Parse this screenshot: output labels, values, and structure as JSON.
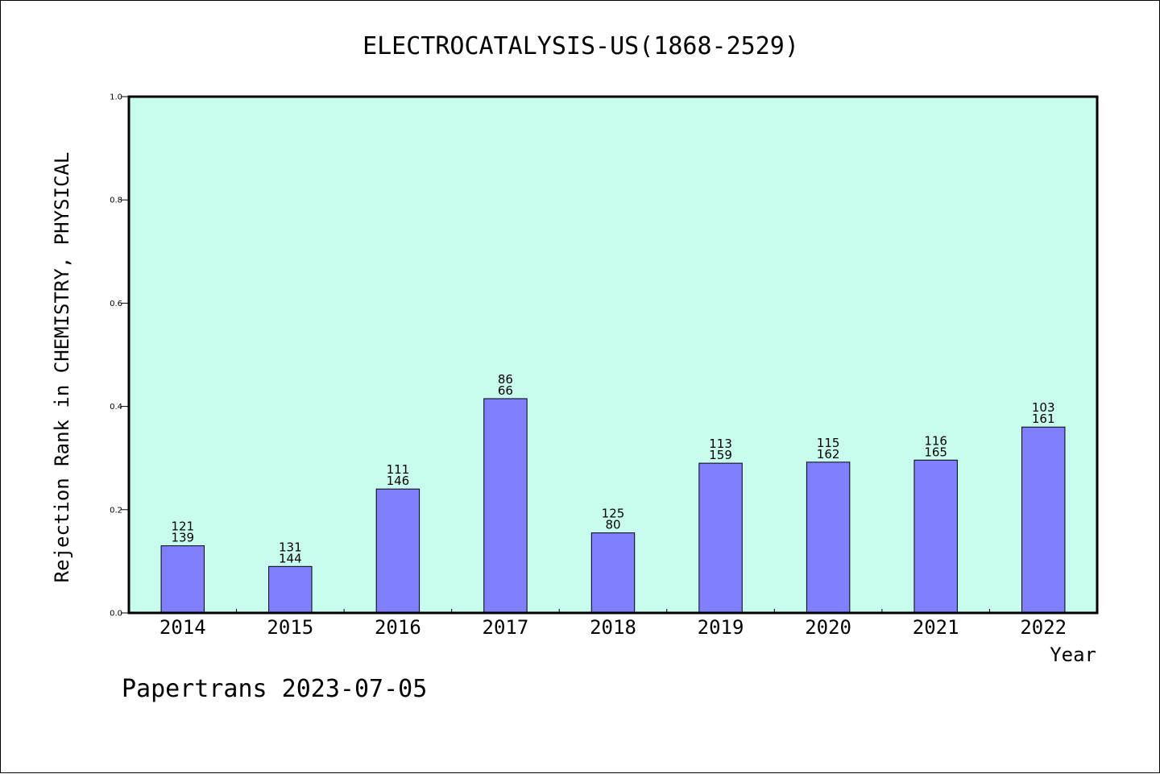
{
  "chart_data": {
    "type": "bar",
    "title": "ELECTROCATALYSIS-US(1868-2529)",
    "xlabel": "Year",
    "ylabel": "Rejection Rank in CHEMISTRY, PHYSICAL",
    "ylim": [
      0,
      1.0
    ],
    "yticks": [
      "0.0",
      "0.2",
      "0.4",
      "0.6",
      "0.8",
      "1.0"
    ],
    "categories": [
      "2014",
      "2015",
      "2016",
      "2017",
      "2018",
      "2019",
      "2020",
      "2021",
      "2022"
    ],
    "values": [
      0.13,
      0.09,
      0.24,
      0.415,
      0.155,
      0.29,
      0.292,
      0.296,
      0.36
    ],
    "labels_top": [
      "121",
      "131",
      "111",
      "86",
      "125",
      "113",
      "115",
      "116",
      "103"
    ],
    "labels_bottom": [
      "139",
      "144",
      "146",
      "66",
      "80",
      "159",
      "162",
      "165",
      "161"
    ],
    "grid": false,
    "colors": {
      "plot_background": "#c8fcee",
      "bar_fill": "#8080ff",
      "bar_stroke": "#000000"
    }
  },
  "footer": {
    "text": "Papertrans 2023-07-05"
  }
}
